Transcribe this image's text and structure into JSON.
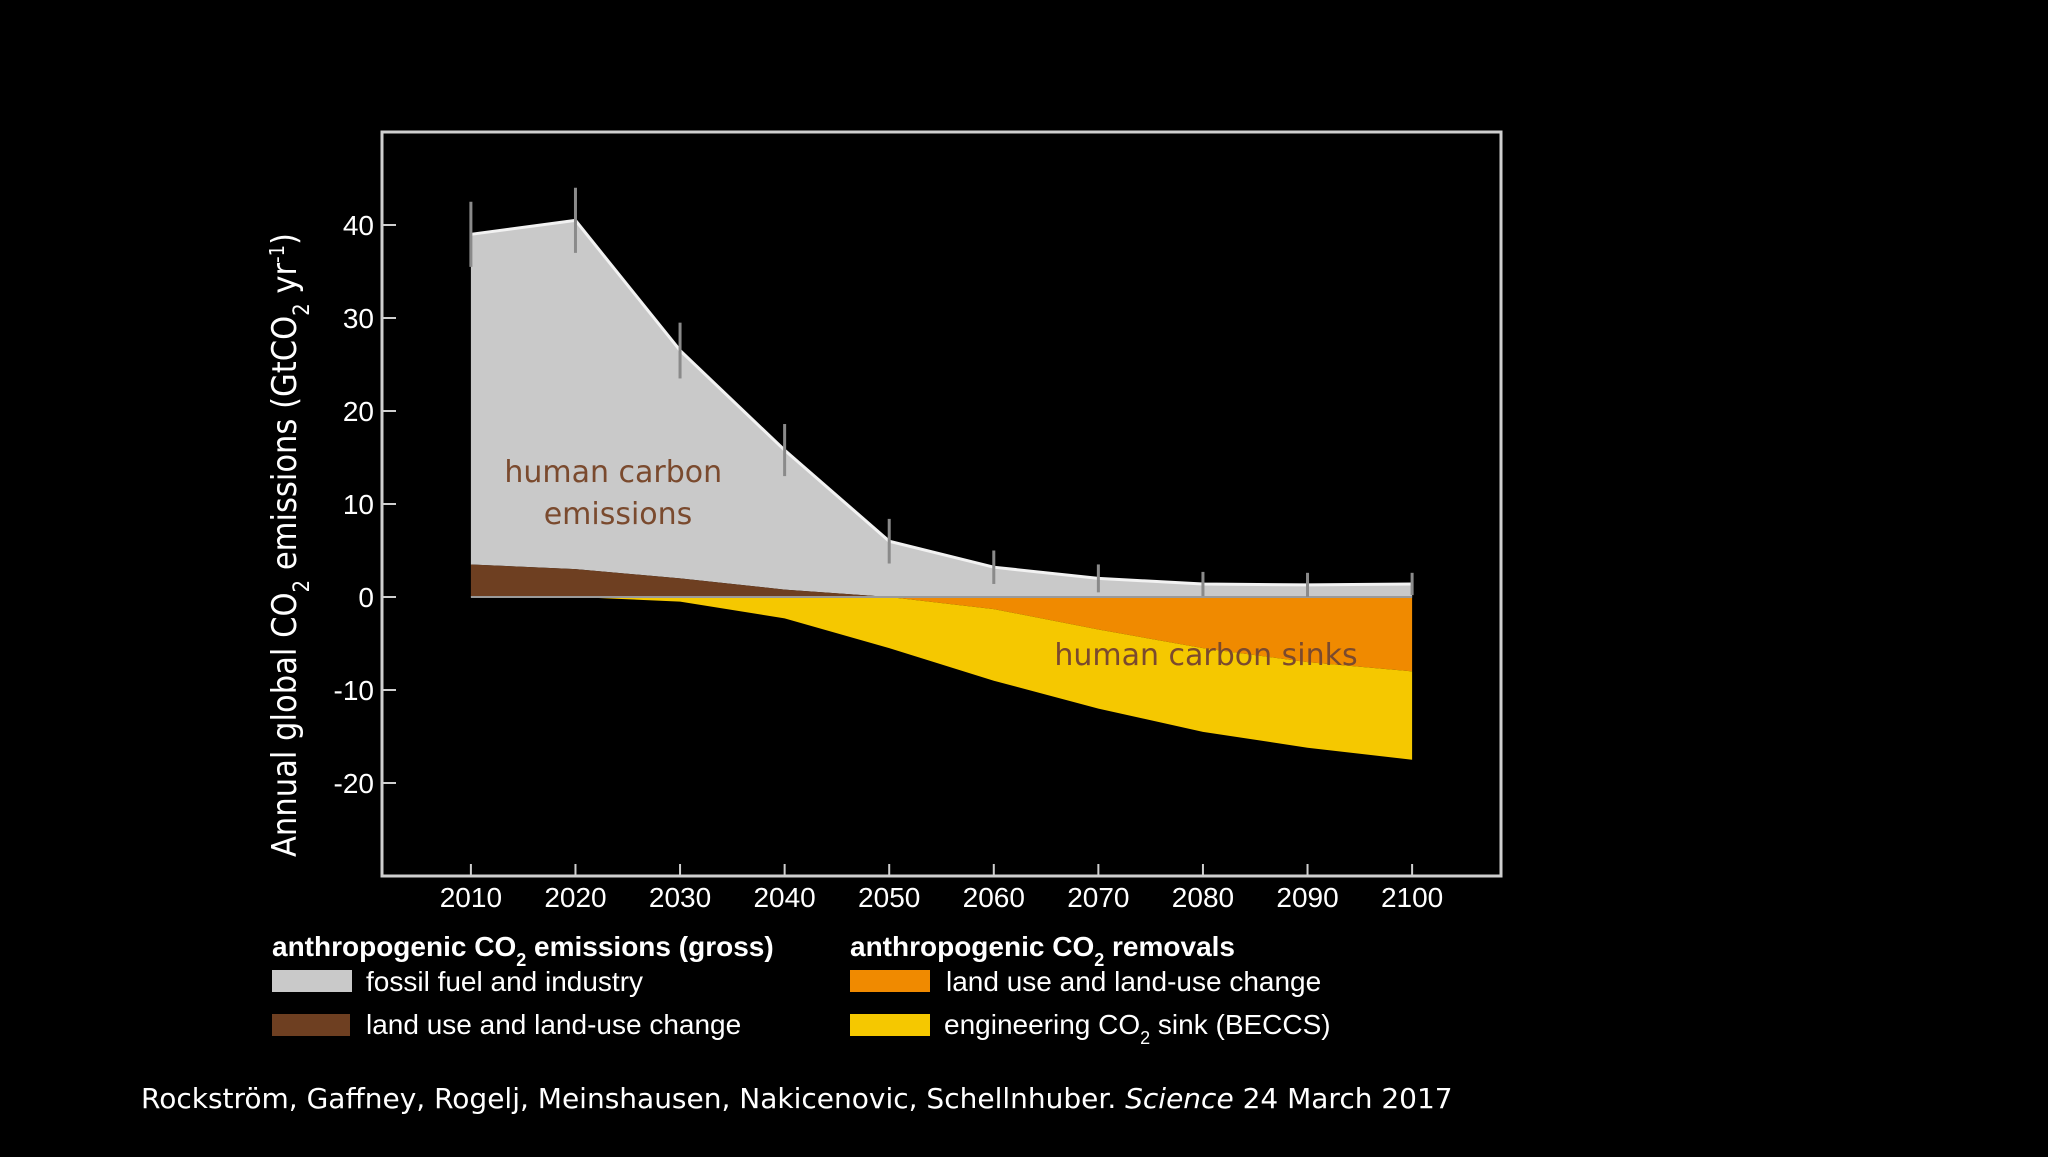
{
  "chart_data": {
    "type": "area",
    "ylabel_parts": {
      "a": "Annual global CO",
      "sub": "2",
      "b": " emissions (GtCO",
      "sub2": "2",
      "c": " yr",
      "sup": "-1",
      "d": ")"
    },
    "x": [
      2010,
      2020,
      2030,
      2040,
      2050,
      2060,
      2070,
      2080,
      2090,
      2100
    ],
    "x_ticks": [
      "2010",
      "2020",
      "2030",
      "2040",
      "2050",
      "2060",
      "2070",
      "2080",
      "2090",
      "2100"
    ],
    "y_ticks": [
      "40",
      "30",
      "20",
      "10",
      "0",
      "-10",
      "-20"
    ],
    "ylim": [
      -30,
      50
    ],
    "xlim": [
      2001.5,
      2108.5
    ],
    "series": [
      {
        "name": "fossil fuel and industry",
        "group": "emissions",
        "color": "#c9c9c9",
        "values": [
          35.5,
          37.5,
          24.5,
          15,
          6,
          3.2,
          2,
          1.4,
          1.3,
          1.4
        ]
      },
      {
        "name": "land use and land-use change",
        "group": "emissions",
        "color": "#6e3f21",
        "values": [
          3.5,
          3,
          2,
          0.8,
          0,
          0,
          0,
          0,
          0,
          0
        ]
      },
      {
        "name": "land use and land-use change",
        "group": "removals",
        "color": "#f08a00",
        "values": [
          0,
          0,
          0,
          0,
          0,
          -1.3,
          -3.5,
          -5.5,
          -7,
          -8
        ]
      },
      {
        "name": "engineering CO2 sink (BECCS)",
        "group": "removals",
        "color": "#f5c800",
        "values": [
          0,
          0,
          -0.5,
          -2.3,
          -5.5,
          -9,
          -12,
          -14.5,
          -16.2,
          -17.5
        ]
      }
    ],
    "error_bar_halfwidth": [
      3.5,
      3.5,
      3,
      2.8,
      2.4,
      1.8,
      1.5,
      1.3,
      1.3,
      1.2
    ],
    "annotations": [
      {
        "text_lines": [
          "human carbon",
          "emissions"
        ],
        "color": "#7a4a2e"
      },
      {
        "text_lines": [
          "human carbon sinks"
        ],
        "color": "#7a4a2e"
      }
    ],
    "legend": {
      "emissions_title": {
        "a": "anthropogenic CO",
        "sub": "2",
        "b": " emissions (gross)"
      },
      "removals_title": {
        "a": "anthropogenic CO",
        "sub": "2",
        "b": " removals"
      },
      "items": {
        "fossil": "fossil fuel and industry",
        "land_emis": "land use and land-use change",
        "land_rem": "land use and land-use change",
        "beccs": {
          "a": "engineering CO",
          "sub": "2",
          "b": " sink (BECCS)"
        }
      }
    }
  },
  "citation": {
    "authors": "Rockström, Gaffney, Rogelj, Meinshausen, Nakicenovic, Schellnhuber.",
    "journal": "Science",
    "date": "24 March 2017"
  }
}
